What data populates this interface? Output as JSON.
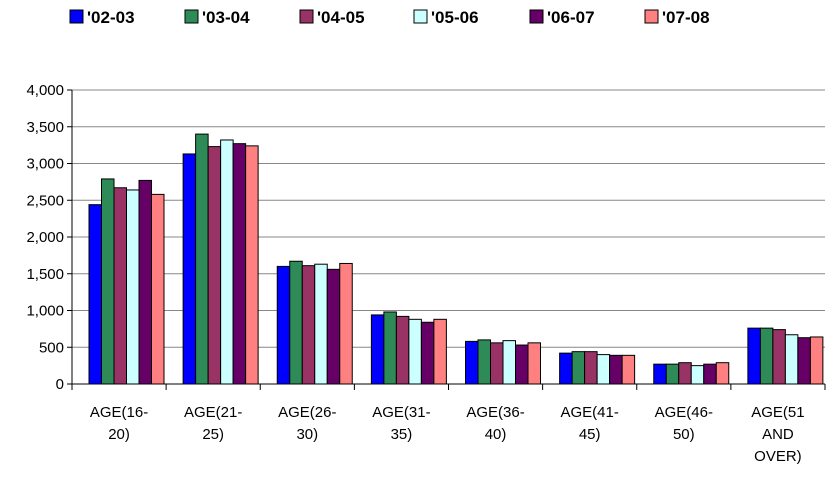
{
  "chart_data": {
    "type": "bar",
    "categories": [
      [
        "AGE(16-",
        "20)"
      ],
      [
        "AGE(21-",
        "25)"
      ],
      [
        "AGE(26-",
        "30)"
      ],
      [
        "AGE(31-",
        "35)"
      ],
      [
        "AGE(36-",
        "40)"
      ],
      [
        "AGE(41-",
        "45)"
      ],
      [
        "AGE(46-",
        "50)"
      ],
      [
        "AGE(51",
        "AND",
        "OVER)"
      ]
    ],
    "series": [
      {
        "name": "'02-03",
        "color": "#0000ff",
        "values": [
          2440,
          3130,
          1600,
          940,
          580,
          420,
          270,
          760
        ]
      },
      {
        "name": "'03-04",
        "color": "#2e8b57",
        "values": [
          2790,
          3400,
          1670,
          980,
          600,
          440,
          270,
          760
        ]
      },
      {
        "name": "'04-05",
        "color": "#993366",
        "values": [
          2670,
          3230,
          1610,
          920,
          560,
          440,
          290,
          740
        ]
      },
      {
        "name": "'05-06",
        "color": "#ccffff",
        "values": [
          2640,
          3320,
          1630,
          880,
          590,
          400,
          250,
          670
        ]
      },
      {
        "name": "'06-07",
        "color": "#660066",
        "values": [
          2770,
          3270,
          1560,
          840,
          530,
          390,
          270,
          630
        ]
      },
      {
        "name": "'07-08",
        "color": "#ff8080",
        "values": [
          2580,
          3240,
          1640,
          880,
          560,
          390,
          290,
          640
        ]
      }
    ],
    "ylim": [
      0,
      4000
    ],
    "yticks": [
      "0",
      "500",
      "1,000",
      "1,500",
      "2,000",
      "2,500",
      "3,000",
      "3,500",
      "4,000"
    ],
    "ytick_values": [
      0,
      500,
      1000,
      1500,
      2000,
      2500,
      3000,
      3500,
      4000
    ],
    "grid": true,
    "legend": "top"
  }
}
